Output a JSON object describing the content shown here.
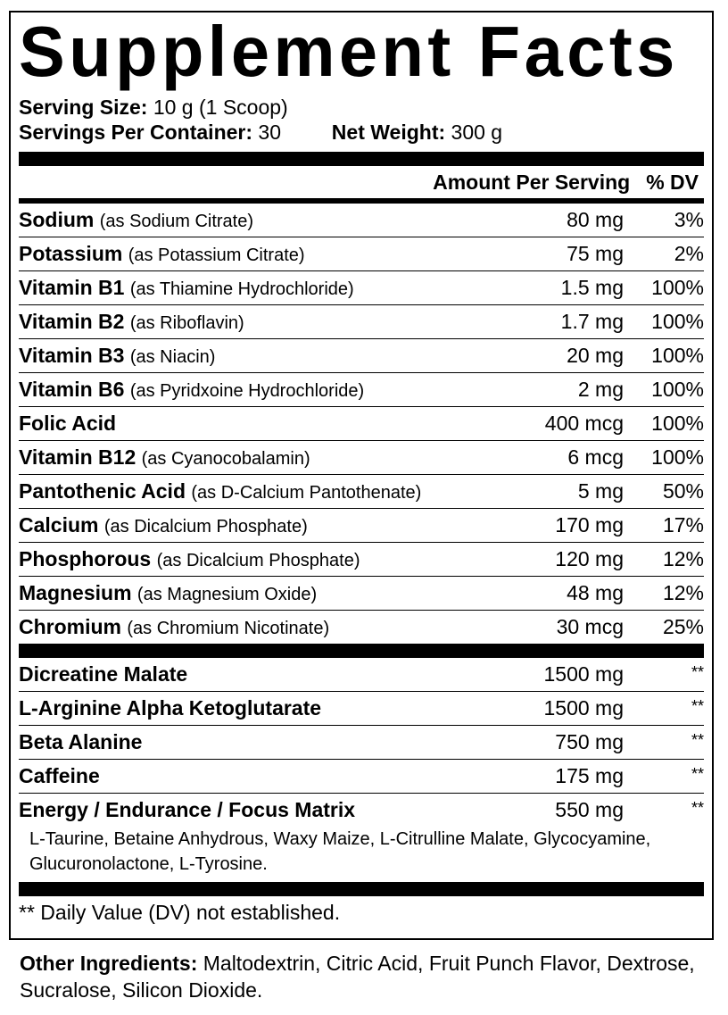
{
  "title": "Supplement Facts",
  "serving_size": {
    "label": "Serving Size:",
    "value": "10 g (1 Scoop)"
  },
  "servings_per_container": {
    "label": "Servings Per Container:",
    "value": "30"
  },
  "net_weight": {
    "label": "Net Weight:",
    "value": "300 g"
  },
  "header": {
    "amount": "Amount Per Serving",
    "dv": "% DV"
  },
  "nutrients": [
    {
      "name": "Sodium",
      "source": "(as Sodium Citrate)",
      "amount": "80 mg",
      "dv": "3%"
    },
    {
      "name": "Potassium",
      "source": "(as Potassium Citrate)",
      "amount": "75 mg",
      "dv": "2%"
    },
    {
      "name": "Vitamin B1",
      "source": "(as Thiamine Hydrochloride)",
      "amount": "1.5 mg",
      "dv": "100%"
    },
    {
      "name": "Vitamin B2",
      "source": "(as Riboflavin)",
      "amount": "1.7 mg",
      "dv": "100%"
    },
    {
      "name": "Vitamin B3",
      "source": "(as Niacin)",
      "amount": "20 mg",
      "dv": "100%"
    },
    {
      "name": "Vitamin B6",
      "source": "(as Pyridxoine Hydrochloride)",
      "amount": "2 mg",
      "dv": "100%"
    },
    {
      "name": "Folic Acid",
      "source": "",
      "amount": "400 mcg",
      "dv": "100%"
    },
    {
      "name": "Vitamin B12",
      "source": "(as Cyanocobalamin)",
      "amount": "6 mcg",
      "dv": "100%"
    },
    {
      "name": "Pantothenic Acid",
      "source": "(as D-Calcium Pantothenate)",
      "amount": "5 mg",
      "dv": "50%"
    },
    {
      "name": "Calcium",
      "source": "(as Dicalcium Phosphate)",
      "amount": "170 mg",
      "dv": "17%"
    },
    {
      "name": "Phosphorous",
      "source": "(as Dicalcium Phosphate)",
      "amount": "120 mg",
      "dv": "12%"
    },
    {
      "name": "Magnesium",
      "source": "(as Magnesium Oxide)",
      "amount": "48 mg",
      "dv": "12%"
    },
    {
      "name": "Chromium",
      "source": "(as Chromium Nicotinate)",
      "amount": "30 mcg",
      "dv": "25%"
    }
  ],
  "other_actives": [
    {
      "name": "Dicreatine Malate",
      "amount": "1500 mg",
      "dv": "**"
    },
    {
      "name": "L-Arginine Alpha Ketoglutarate",
      "amount": "1500 mg",
      "dv": "**"
    },
    {
      "name": "Beta Alanine",
      "amount": "750 mg",
      "dv": "**"
    },
    {
      "name": "Caffeine",
      "amount": "175 mg",
      "dv": "**"
    },
    {
      "name": "Energy / Endurance / Focus Matrix",
      "amount": "550 mg",
      "dv": "**"
    }
  ],
  "matrix_ingredients": "L-Taurine, Betaine Anhydrous, Waxy Maize, L-Citrulline Malate, Glycocyamine, Glucuronolactone, L-Tyrosine.",
  "footnote": "** Daily Value (DV) not established.",
  "other_ingredients": {
    "label": "Other Ingredients:",
    "value": "Maltodextrin, Citric Acid, Fruit Punch Flavor, Dextrose, Sucralose, Silicon Dioxide."
  }
}
